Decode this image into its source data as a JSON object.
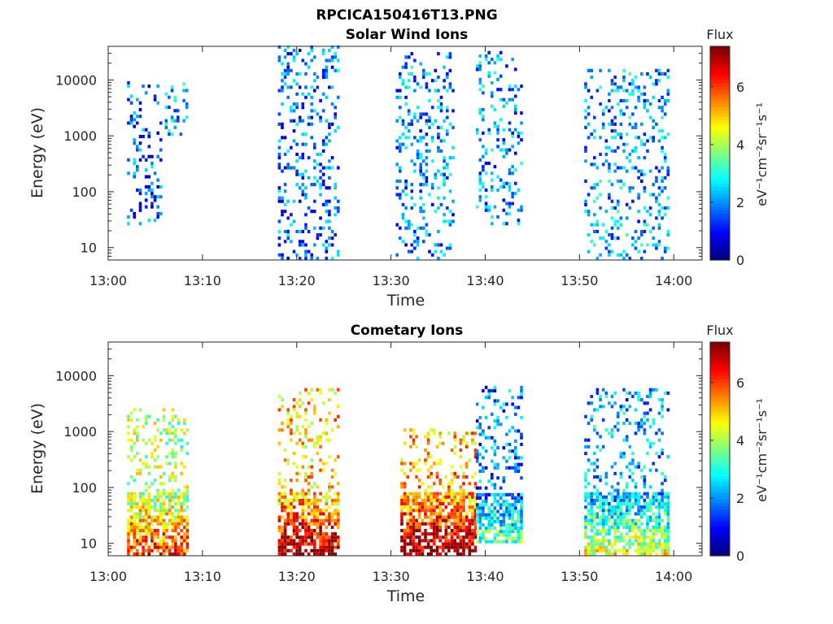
{
  "figure_title": "RPCICA150416T13.PNG",
  "chart_data": [
    {
      "type": "heatmap",
      "title": "Solar Wind Ions",
      "xlabel": "Time",
      "ylabel": "Energy (eV)",
      "yscale": "log",
      "xlim": [
        "13:00",
        "14:03"
      ],
      "ylim": [
        6,
        40000
      ],
      "x_ticks": [
        "13:00",
        "13:10",
        "13:20",
        "13:30",
        "13:40",
        "13:50",
        "14:00"
      ],
      "y_ticks": [
        "10",
        "100",
        "1000",
        "10000"
      ],
      "colorbar": {
        "label": "Flux",
        "units": "eV⁻¹cm⁻²sr⁻¹s⁻¹",
        "ticks": [
          "0",
          "2",
          "4",
          "6"
        ],
        "range": [
          0,
          7.4
        ],
        "colormap": "jet"
      },
      "activity_intervals": [
        {
          "start": "13:02",
          "end": "13:05.5",
          "e_low": 25,
          "e_high": 9000,
          "flux_typ": 1.6
        },
        {
          "start": "13:06",
          "end": "13:08.5",
          "e_low": 1000,
          "e_high": 9000,
          "flux_typ": 2.2
        },
        {
          "start": "13:18",
          "end": "13:24.5",
          "e_low": 6,
          "e_high": 40000,
          "flux_typ": 1.7
        },
        {
          "start": "13:30.5",
          "end": "13:36.5",
          "e_low": 6,
          "e_high": 30000,
          "flux_typ": 2.0
        },
        {
          "start": "13:39",
          "end": "13:44",
          "e_low": 25,
          "e_high": 30000,
          "flux_typ": 2.0
        },
        {
          "start": "13:50.5",
          "end": "13:59.5",
          "e_low": 6,
          "e_high": 15000,
          "flux_typ": 2.1
        }
      ]
    },
    {
      "type": "heatmap",
      "title": "Cometary Ions",
      "xlabel": "Time",
      "ylabel": "Energy (eV)",
      "yscale": "log",
      "xlim": [
        "13:00",
        "14:03"
      ],
      "ylim": [
        6,
        40000
      ],
      "x_ticks": [
        "13:00",
        "13:10",
        "13:20",
        "13:30",
        "13:40",
        "13:50",
        "14:00"
      ],
      "y_ticks": [
        "10",
        "100",
        "1000",
        "10000"
      ],
      "colorbar": {
        "label": "Flux",
        "units": "eV⁻¹cm⁻²sr⁻¹s⁻¹",
        "ticks": [
          "0",
          "2",
          "4",
          "6"
        ],
        "range": [
          0,
          7.4
        ],
        "colormap": "jet"
      },
      "activity_intervals": [
        {
          "start": "13:02",
          "end": "13:08.5",
          "e_low": 6,
          "e_high": 2500,
          "flux_typ": 4.0
        },
        {
          "start": "13:18",
          "end": "13:24.5",
          "e_low": 6,
          "e_high": 6000,
          "flux_typ": 5.0
        },
        {
          "start": "13:31",
          "end": "13:39",
          "e_low": 6,
          "e_high": 1000,
          "flux_typ": 5.2
        },
        {
          "start": "13:39",
          "end": "13:44",
          "e_low": 10,
          "e_high": 6000,
          "flux_typ": 1.8
        },
        {
          "start": "13:50.5",
          "end": "13:59.5",
          "e_low": 6,
          "e_high": 6000,
          "flux_typ": 2.2
        }
      ]
    }
  ]
}
